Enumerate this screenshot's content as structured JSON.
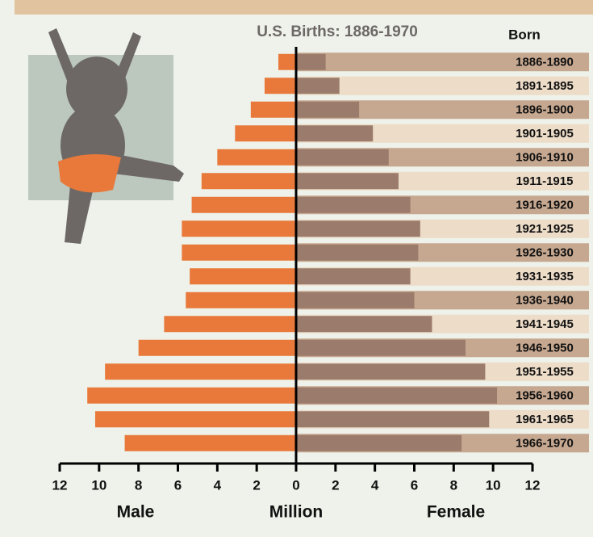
{
  "chart_data": {
    "type": "pyramid",
    "title": "U.S. Births: 1886-1970",
    "category_header": "Born",
    "x_label": "Million",
    "categories": [
      "1886-1890",
      "1891-1895",
      "1896-1900",
      "1901-1905",
      "1906-1910",
      "1911-1915",
      "1916-1920",
      "1921-1925",
      "1926-1930",
      "1931-1935",
      "1936-1940",
      "1941-1945",
      "1946-1950",
      "1951-1955",
      "1956-1960",
      "1961-1965",
      "1966-1970"
    ],
    "series": [
      {
        "name": "Male",
        "color": "#e8793a",
        "values": [
          0.9,
          1.6,
          2.3,
          3.1,
          4.0,
          4.8,
          5.3,
          5.8,
          5.8,
          5.4,
          5.6,
          6.7,
          8.0,
          9.7,
          10.6,
          10.2,
          8.7
        ]
      },
      {
        "name": "Female",
        "color": "#9b7b6b",
        "values": [
          1.5,
          2.2,
          3.2,
          3.9,
          4.7,
          5.2,
          5.8,
          6.3,
          6.2,
          5.8,
          6.0,
          6.9,
          8.6,
          9.6,
          10.2,
          9.8,
          8.4
        ]
      }
    ],
    "xlim": [
      0,
      12
    ],
    "xticks": [
      0,
      2,
      4,
      6,
      8,
      10,
      12
    ]
  }
}
